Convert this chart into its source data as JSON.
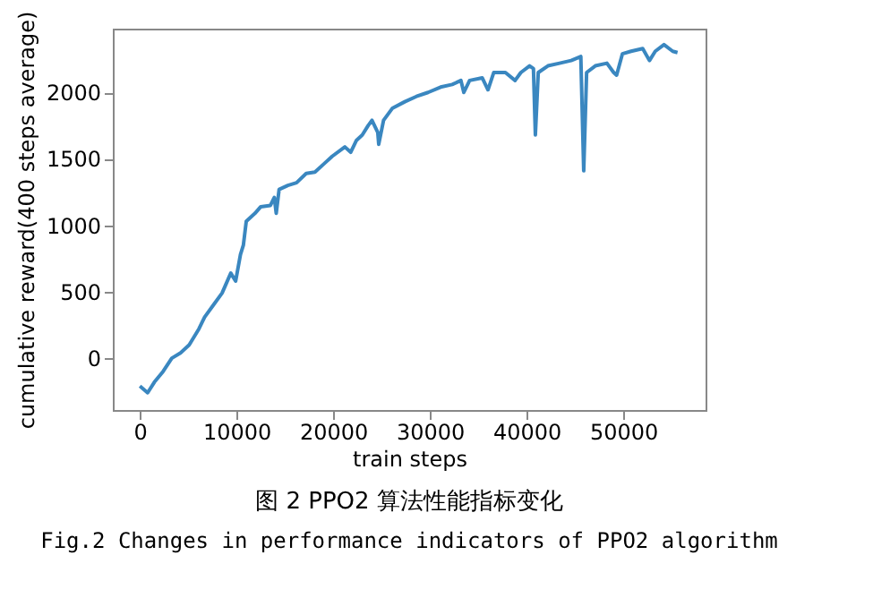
{
  "chart_data": {
    "type": "line",
    "xlabel": "train steps",
    "ylabel": "cumulative reward(400 steps average)",
    "xlim": [
      -2800,
      58500
    ],
    "ylim": [
      -390,
      2480
    ],
    "xticks": [
      0,
      10000,
      20000,
      30000,
      40000,
      50000
    ],
    "yticks": [
      0,
      500,
      1000,
      1500,
      2000
    ],
    "grid": false,
    "legend": false,
    "series": [
      {
        "color": "#3a87c0",
        "x": [
          0,
          800,
          1500,
          2400,
          3300,
          4200,
          5100,
          6100,
          6700,
          7600,
          8500,
          9400,
          9900,
          10400,
          10700,
          11000,
          11900,
          12500,
          13500,
          13900,
          14100,
          14400,
          15300,
          16200,
          17200,
          18100,
          19000,
          19900,
          21200,
          21800,
          22400,
          23000,
          23600,
          24000,
          24600,
          24700,
          25200,
          26100,
          27400,
          28600,
          29800,
          31100,
          32300,
          33200,
          33500,
          34100,
          35400,
          36000,
          36600,
          37800,
          38800,
          39400,
          40300,
          40700,
          40900,
          41200,
          42200,
          43400,
          44600,
          45600,
          45900,
          46200,
          47100,
          48300,
          49000,
          49300,
          49900,
          50800,
          52000,
          52700,
          53300,
          54200,
          55100,
          55600
        ],
        "values": [
          -210,
          -260,
          -180,
          -100,
          0,
          40,
          100,
          220,
          310,
          400,
          490,
          640,
          580,
          780,
          850,
          1030,
          1090,
          1140,
          1150,
          1210,
          1090,
          1270,
          1300,
          1320,
          1390,
          1400,
          1460,
          1520,
          1590,
          1550,
          1640,
          1680,
          1750,
          1790,
          1700,
          1610,
          1790,
          1880,
          1930,
          1970,
          2000,
          2040,
          2060,
          2090,
          2000,
          2090,
          2110,
          2020,
          2150,
          2150,
          2090,
          2150,
          2200,
          2180,
          1680,
          2150,
          2200,
          2220,
          2240,
          2270,
          1410,
          2150,
          2200,
          2220,
          2150,
          2130,
          2290,
          2310,
          2330,
          2240,
          2310,
          2360,
          2310,
          2300
        ]
      }
    ],
    "annotations": [
      "图 2 PPO2 算法性能指标变化",
      "Fig.2 Changes in performance indicators of PPO2 algorithm"
    ]
  }
}
